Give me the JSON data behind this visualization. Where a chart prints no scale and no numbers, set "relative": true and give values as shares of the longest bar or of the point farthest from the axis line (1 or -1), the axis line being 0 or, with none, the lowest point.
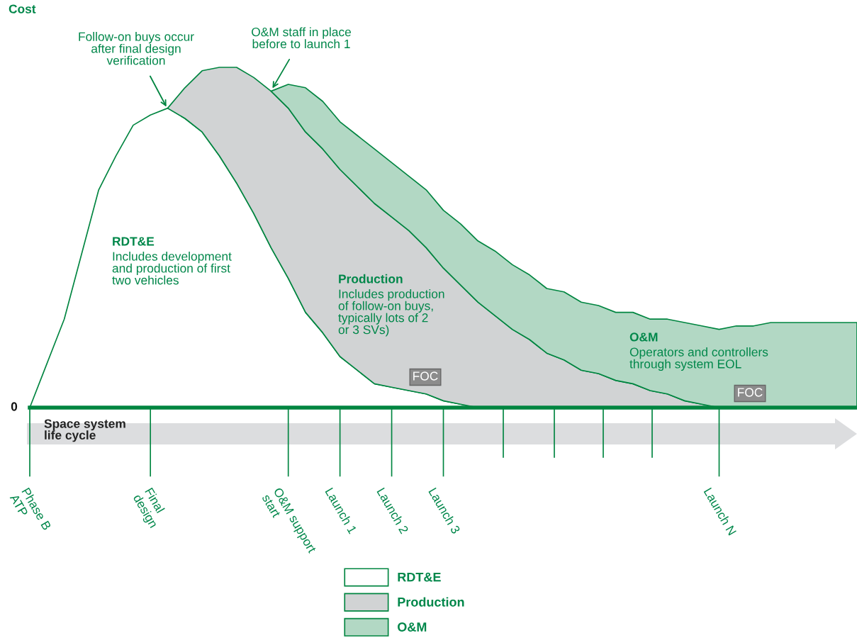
{
  "chart_data": {
    "type": "area",
    "stacked": true,
    "relative": true,
    "ylabel": "Cost",
    "xlabel": "Space system\nlife cycle",
    "categories": [
      "Phase B\nATP",
      null,
      null,
      null,
      null,
      null,
      null,
      "Final\ndesign",
      null,
      null,
      null,
      null,
      null,
      null,
      null,
      "O&M support\nstart",
      null,
      null,
      "Launch 1",
      null,
      null,
      "Launch 2",
      null,
      null,
      "Launch 3",
      null,
      null,
      null,
      null,
      null,
      null,
      null,
      null,
      null,
      null,
      null,
      null,
      null,
      null,
      null,
      "Launch N",
      null,
      null,
      null,
      null,
      null,
      null,
      null,
      null
    ],
    "series": [
      {
        "name": "RDT&E",
        "color": "#ffffff",
        "values": [
          0,
          0.13,
          0.26,
          0.45,
          0.64,
          0.74,
          0.83,
          0.86,
          0.88,
          0.85,
          0.81,
          0.74,
          0.66,
          0.57,
          0.47,
          0.38,
          0.28,
          0.22,
          0.15,
          0.11,
          0.07,
          0.06,
          0.05,
          0.04,
          0.02,
          0.01,
          0,
          null,
          null,
          null,
          null,
          null,
          null,
          null,
          null,
          null,
          null,
          null,
          null,
          null,
          null,
          null,
          null,
          null,
          null,
          null,
          null,
          null,
          null
        ]
      },
      {
        "name": "Production",
        "color": "#d1d3d4",
        "values": [
          null,
          null,
          null,
          null,
          null,
          null,
          null,
          null,
          0,
          0.09,
          0.18,
          0.26,
          0.34,
          0.4,
          0.46,
          0.5,
          0.53,
          0.54,
          0.55,
          0.54,
          0.53,
          0.5,
          0.47,
          0.43,
          0.39,
          0.35,
          0.31,
          0.27,
          0.23,
          0.2,
          0.16,
          0.14,
          0.11,
          0.1,
          0.08,
          0.07,
          0.05,
          0.04,
          0.02,
          0.01,
          0,
          null,
          null,
          null,
          null,
          null,
          null,
          null,
          null
        ]
      },
      {
        "name": "O&M",
        "color": "#b2d8c4",
        "values": [
          null,
          null,
          null,
          null,
          null,
          null,
          null,
          null,
          null,
          null,
          null,
          null,
          null,
          null,
          0,
          0.07,
          0.13,
          0.14,
          0.14,
          0.15,
          0.16,
          0.16,
          0.16,
          0.17,
          0.17,
          0.18,
          0.18,
          0.19,
          0.19,
          0.19,
          0.19,
          0.2,
          0.2,
          0.2,
          0.2,
          0.21,
          0.21,
          0.22,
          0.23,
          0.23,
          0.23,
          0.24,
          0.24,
          0.25,
          0.25,
          0.25,
          0.25,
          0.25,
          0.25
        ]
      }
    ],
    "annotations": [
      "0",
      "Follow-on buys occur\nafter final design\nverification",
      "O&M staff in place\nbefore to launch 1",
      "RDT&E",
      "Includes development\nand production of first\ntwo vehicles",
      "Production",
      "Includes production\nof follow-on buys,\ntypically lots of 2\nor 3 SVs)",
      "O&M",
      "Operators and controllers\nthrough system EOL",
      "FOC",
      "FOC"
    ],
    "legend": "bottom"
  }
}
